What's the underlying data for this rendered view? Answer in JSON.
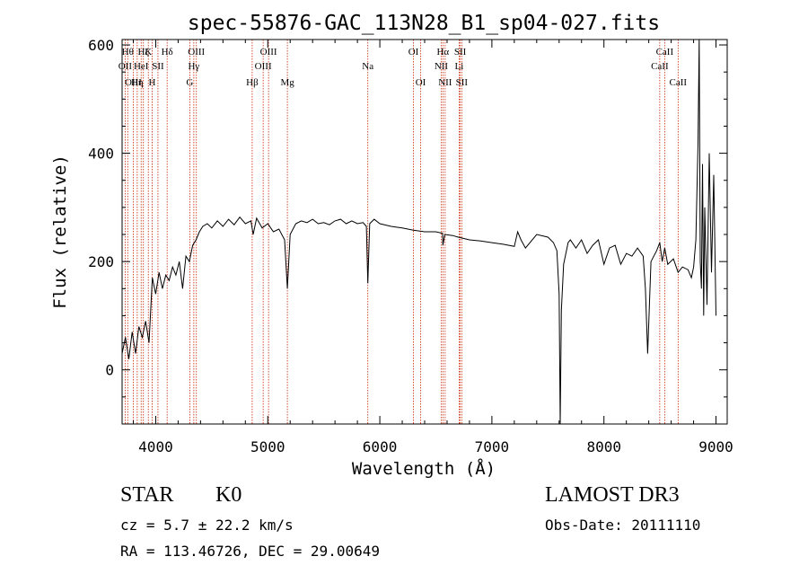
{
  "chart_data": {
    "type": "line",
    "title": "spec-55876-GAC_113N28_B1_sp04-027.fits",
    "xlabel": "Wavelength (Å)",
    "ylabel": "Flux (relative)",
    "xlim": [
      3700,
      9100
    ],
    "ylim": [
      -100,
      610
    ],
    "xticks": [
      4000,
      5000,
      6000,
      7000,
      8000,
      9000
    ],
    "yticks": [
      0,
      200,
      400,
      600
    ],
    "grid": false,
    "line_color": "#000000",
    "marker_color": "#cc2200",
    "series": [
      {
        "x": [
          3700,
          3730,
          3760,
          3790,
          3820,
          3850,
          3880,
          3910,
          3940,
          3970,
          4000,
          4030,
          4060,
          4090,
          4120,
          4150,
          4180,
          4210,
          4240,
          4270,
          4300,
          4330,
          4360,
          4390,
          4420,
          4460,
          4500,
          4550,
          4600,
          4650,
          4700,
          4750,
          4800,
          4850,
          4870,
          4900,
          4950,
          5000,
          5050,
          5100,
          5150,
          5175,
          5200,
          5250,
          5300,
          5350,
          5400,
          5450,
          5500,
          5550,
          5600,
          5650,
          5700,
          5750,
          5800,
          5850,
          5880,
          5893,
          5910,
          5950,
          6000,
          6100,
          6200,
          6300,
          6400,
          6500,
          6560,
          6563,
          6580,
          6650,
          6700,
          6800,
          6900,
          7000,
          7100,
          7200,
          7230,
          7260,
          7300,
          7400,
          7500,
          7550,
          7580,
          7600,
          7610,
          7620,
          7640,
          7680,
          7700,
          7750,
          7800,
          7850,
          7900,
          7950,
          8000,
          8050,
          8100,
          8150,
          8200,
          8250,
          8300,
          8350,
          8370,
          8390,
          8420,
          8470,
          8498,
          8520,
          8542,
          8570,
          8620,
          8662,
          8700,
          8750,
          8780,
          8800,
          8820,
          8840,
          8850,
          8860,
          8870,
          8880,
          8890,
          8900,
          8920,
          8940,
          8960,
          8980,
          9000
        ],
        "y": [
          30,
          60,
          20,
          70,
          30,
          80,
          60,
          90,
          50,
          170,
          140,
          180,
          150,
          175,
          165,
          190,
          175,
          200,
          150,
          210,
          200,
          230,
          240,
          255,
          265,
          270,
          262,
          275,
          265,
          278,
          268,
          282,
          270,
          275,
          250,
          280,
          262,
          270,
          255,
          260,
          240,
          150,
          250,
          270,
          275,
          272,
          278,
          270,
          272,
          268,
          275,
          278,
          270,
          275,
          270,
          272,
          265,
          160,
          270,
          278,
          270,
          265,
          262,
          258,
          255,
          255,
          252,
          230,
          250,
          248,
          245,
          240,
          238,
          235,
          232,
          228,
          255,
          240,
          225,
          250,
          245,
          235,
          220,
          140,
          -100,
          110,
          195,
          235,
          240,
          225,
          240,
          215,
          230,
          240,
          195,
          225,
          230,
          195,
          215,
          210,
          225,
          210,
          150,
          30,
          200,
          220,
          235,
          200,
          225,
          195,
          205,
          180,
          190,
          185,
          170,
          190,
          240,
          420,
          610,
          200,
          150,
          380,
          100,
          300,
          120,
          400,
          180,
          360,
          100
        ]
      }
    ],
    "lines": [
      {
        "x": 3727,
        "label": "OII",
        "row": 1
      },
      {
        "x": 3750,
        "label": "Hθ",
        "row": 0
      },
      {
        "x": 3800,
        "label": "OIII",
        "row": 2
      },
      {
        "x": 3835,
        "label": "Hη",
        "row": 2
      },
      {
        "x": 3870,
        "label": "HeI",
        "row": 1
      },
      {
        "x": 3890,
        "label": "Hζ",
        "row": 0
      },
      {
        "x": 3934,
        "label": "K",
        "row": 0
      },
      {
        "x": 3968,
        "label": "H",
        "row": 2
      },
      {
        "x": 4020,
        "label": "SII",
        "row": 1
      },
      {
        "x": 4102,
        "label": "Hδ",
        "row": 0
      },
      {
        "x": 4304,
        "label": "G",
        "row": 2
      },
      {
        "x": 4340,
        "label": "Hγ",
        "row": 1
      },
      {
        "x": 4363,
        "label": "OIII",
        "row": 0
      },
      {
        "x": 4861,
        "label": "Hβ",
        "row": 2
      },
      {
        "x": 4959,
        "label": "OIII",
        "row": 1
      },
      {
        "x": 5007,
        "label": "OIII",
        "row": 0
      },
      {
        "x": 5175,
        "label": "Mg",
        "row": 2
      },
      {
        "x": 5893,
        "label": "Na",
        "row": 1
      },
      {
        "x": 6300,
        "label": "OI",
        "row": 0
      },
      {
        "x": 6364,
        "label": "OI",
        "row": 2
      },
      {
        "x": 6548,
        "label": "NII",
        "row": 1
      },
      {
        "x": 6563,
        "label": "Hα",
        "row": 0
      },
      {
        "x": 6583,
        "label": "NII",
        "row": 2
      },
      {
        "x": 6708,
        "label": "Li",
        "row": 1
      },
      {
        "x": 6717,
        "label": "SII",
        "row": 0
      },
      {
        "x": 6731,
        "label": "SII",
        "row": 2
      },
      {
        "x": 8498,
        "label": "CaII",
        "row": 1
      },
      {
        "x": 8542,
        "label": "CaII",
        "row": 0
      },
      {
        "x": 8662,
        "label": "CaII",
        "row": 2
      }
    ]
  },
  "info": {
    "object_class": "STAR",
    "subclass": "K0",
    "survey": "LAMOST DR3",
    "redshift": "cz = 5.7 ± 22.2 km/s",
    "obs_date": "Obs-Date: 20111110",
    "coords": "RA = 113.46726, DEC =  29.00649"
  }
}
